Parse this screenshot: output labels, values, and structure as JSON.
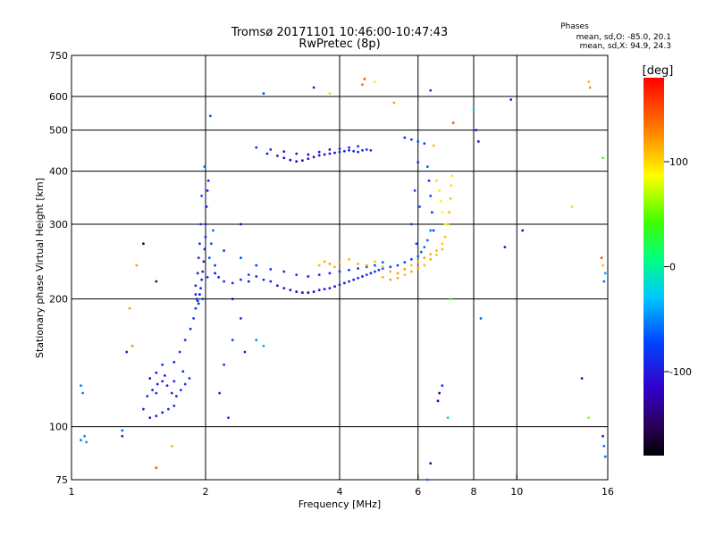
{
  "header": {
    "title": "Tromsø 20171101 10:46:00-10:47:43",
    "subtitle": "RwPretec (8p)"
  },
  "stats": {
    "title": "Phases",
    "line_o": "mean, sd,O: -85.0, 20.1",
    "line_x": "mean, sd,X: 94.9, 24.3"
  },
  "colorbar": {
    "label": "[deg]",
    "range": [
      -180,
      180
    ],
    "ticks": [
      {
        "value": 100,
        "label": "100"
      },
      {
        "value": 0,
        "label": "0"
      },
      {
        "value": -100,
        "label": "-100"
      }
    ]
  },
  "chart_data": {
    "type": "scatter",
    "xlabel": "Frequency [MHz]",
    "ylabel": "Stationary phase Virtual Height [km]",
    "x_scale": "log",
    "y_scale": "log",
    "xlim": [
      1,
      16
    ],
    "ylim": [
      75,
      750
    ],
    "x_ticks": [
      {
        "value": 1,
        "label": "1"
      },
      {
        "value": 2,
        "label": "2"
      },
      {
        "value": 4,
        "label": "4"
      },
      {
        "value": 6,
        "label": "6"
      },
      {
        "value": 8,
        "label": "8"
      },
      {
        "value": 10,
        "label": "10"
      },
      {
        "value": 16,
        "label": "16"
      }
    ],
    "y_ticks": [
      {
        "value": 75,
        "label": "75"
      },
      {
        "value": 100,
        "label": "100"
      },
      {
        "value": 200,
        "label": "200"
      },
      {
        "value": 300,
        "label": "300"
      },
      {
        "value": 400,
        "label": "400"
      },
      {
        "value": 500,
        "label": "500"
      },
      {
        "value": 600,
        "label": "600"
      },
      {
        "value": 750,
        "label": "750"
      }
    ],
    "grid": true,
    "color_variable": "phase [deg]",
    "points": [
      [
        1.05,
        125,
        -55
      ],
      [
        1.06,
        120,
        -50
      ],
      [
        1.05,
        93,
        -55
      ],
      [
        1.07,
        95,
        -50
      ],
      [
        1.08,
        92,
        -45
      ],
      [
        1.35,
        190,
        120
      ],
      [
        1.37,
        155,
        125
      ],
      [
        1.3,
        95,
        -90
      ],
      [
        1.4,
        240,
        120
      ],
      [
        1.45,
        110,
        -100
      ],
      [
        1.5,
        105,
        -110
      ],
      [
        1.55,
        106,
        -105
      ],
      [
        1.6,
        108,
        -100
      ],
      [
        1.65,
        110,
        -95
      ],
      [
        1.7,
        112,
        -90
      ],
      [
        1.48,
        118,
        -100
      ],
      [
        1.52,
        122,
        -105
      ],
      [
        1.56,
        126,
        -100
      ],
      [
        1.6,
        128,
        -95
      ],
      [
        1.64,
        125,
        -90
      ],
      [
        1.68,
        120,
        -95
      ],
      [
        1.72,
        118,
        -100
      ],
      [
        1.76,
        122,
        -90
      ],
      [
        1.8,
        126,
        -85
      ],
      [
        1.84,
        130,
        -80
      ],
      [
        1.5,
        130,
        -110
      ],
      [
        1.55,
        134,
        -105
      ],
      [
        1.62,
        132,
        -100
      ],
      [
        1.7,
        128,
        -95
      ],
      [
        1.78,
        135,
        -90
      ],
      [
        1.6,
        140,
        -90
      ],
      [
        1.7,
        142,
        -85
      ],
      [
        1.75,
        150,
        -85
      ],
      [
        1.8,
        160,
        -80
      ],
      [
        1.85,
        170,
        -80
      ],
      [
        1.88,
        180,
        -85
      ],
      [
        1.9,
        190,
        -90
      ],
      [
        1.92,
        198,
        -95
      ],
      [
        1.94,
        205,
        -100
      ],
      [
        1.95,
        212,
        -100
      ],
      [
        1.96,
        222,
        -95
      ],
      [
        1.97,
        232,
        -100
      ],
      [
        1.98,
        245,
        -100
      ],
      [
        1.99,
        262,
        -95
      ],
      [
        2.0,
        280,
        -95
      ],
      [
        2.0,
        300,
        -100
      ],
      [
        2.01,
        330,
        -105
      ],
      [
        2.02,
        360,
        -100
      ],
      [
        2.03,
        380,
        -95
      ],
      [
        1.99,
        410,
        -60
      ],
      [
        1.96,
        350,
        -70
      ],
      [
        1.95,
        300,
        -80
      ],
      [
        1.94,
        270,
        -85
      ],
      [
        1.93,
        250,
        -90
      ],
      [
        1.92,
        230,
        -95
      ],
      [
        1.9,
        215,
        -90
      ],
      [
        1.9,
        205,
        -85
      ],
      [
        1.91,
        200,
        -80
      ],
      [
        1.93,
        195,
        -85
      ],
      [
        1.97,
        200,
        -75
      ],
      [
        2.02,
        225,
        -70
      ],
      [
        2.04,
        250,
        -65
      ],
      [
        2.06,
        270,
        -70
      ],
      [
        2.08,
        290,
        -60
      ],
      [
        2.1,
        240,
        -80
      ],
      [
        2.1,
        230,
        -100
      ],
      [
        2.14,
        225,
        -95
      ],
      [
        2.2,
        220,
        -90
      ],
      [
        2.3,
        218,
        -85
      ],
      [
        2.4,
        222,
        -80
      ],
      [
        2.5,
        228,
        -75
      ],
      [
        2.6,
        226,
        -85
      ],
      [
        2.7,
        222,
        -90
      ],
      [
        2.8,
        220,
        -95
      ],
      [
        2.9,
        215,
        -100
      ],
      [
        3.0,
        212,
        -110
      ],
      [
        3.1,
        210,
        -115
      ],
      [
        3.2,
        208,
        -120
      ],
      [
        3.3,
        207,
        -120
      ],
      [
        3.4,
        207,
        -125
      ],
      [
        3.5,
        208,
        -120
      ],
      [
        3.6,
        210,
        -115
      ],
      [
        3.7,
        211,
        -110
      ],
      [
        3.8,
        212,
        -110
      ],
      [
        3.9,
        214,
        -105
      ],
      [
        4.0,
        216,
        -100
      ],
      [
        4.1,
        218,
        -100
      ],
      [
        4.2,
        220,
        -95
      ],
      [
        4.3,
        222,
        -95
      ],
      [
        4.4,
        224,
        -90
      ],
      [
        4.5,
        226,
        -90
      ],
      [
        4.6,
        228,
        -85
      ],
      [
        4.7,
        230,
        -85
      ],
      [
        4.8,
        232,
        -80
      ],
      [
        4.9,
        234,
        -80
      ],
      [
        5.0,
        236,
        -80
      ],
      [
        5.2,
        238,
        -75
      ],
      [
        5.4,
        240,
        -75
      ],
      [
        5.6,
        244,
        -70
      ],
      [
        5.8,
        248,
        -70
      ],
      [
        6.0,
        252,
        -65
      ],
      [
        6.1,
        258,
        -65
      ],
      [
        6.2,
        265,
        -60
      ],
      [
        6.3,
        275,
        -60
      ],
      [
        6.4,
        290,
        -55
      ],
      [
        2.2,
        260,
        -80
      ],
      [
        2.4,
        250,
        -70
      ],
      [
        2.6,
        240,
        -80
      ],
      [
        2.8,
        235,
        -90
      ],
      [
        3.0,
        232,
        -85
      ],
      [
        3.2,
        228,
        -90
      ],
      [
        3.4,
        226,
        -95
      ],
      [
        3.6,
        228,
        -90
      ],
      [
        3.8,
        230,
        -85
      ],
      [
        4.0,
        232,
        -80
      ],
      [
        4.2,
        234,
        -80
      ],
      [
        4.4,
        236,
        -75
      ],
      [
        4.6,
        238,
        -70
      ],
      [
        4.8,
        240,
        -70
      ],
      [
        5.0,
        244,
        -65
      ],
      [
        3.6,
        240,
        110
      ],
      [
        3.7,
        245,
        115
      ],
      [
        3.8,
        242,
        120
      ],
      [
        3.9,
        238,
        110
      ],
      [
        4.0,
        244,
        125
      ],
      [
        4.2,
        248,
        110
      ],
      [
        4.4,
        242,
        115
      ],
      [
        4.6,
        240,
        120
      ],
      [
        4.8,
        245,
        105
      ],
      [
        5.0,
        238,
        110
      ],
      [
        5.2,
        232,
        115
      ],
      [
        5.4,
        230,
        120
      ],
      [
        5.6,
        235,
        125
      ],
      [
        5.8,
        240,
        110
      ],
      [
        6.0,
        245,
        115
      ],
      [
        6.2,
        250,
        120
      ],
      [
        6.4,
        255,
        115
      ],
      [
        6.6,
        260,
        110
      ],
      [
        6.8,
        270,
        105
      ],
      [
        6.9,
        280,
        110
      ],
      [
        7.0,
        300,
        100
      ],
      [
        7.05,
        320,
        110
      ],
      [
        7.1,
        345,
        105
      ],
      [
        7.12,
        370,
        100
      ],
      [
        7.15,
        390,
        95
      ],
      [
        5.0,
        225,
        115
      ],
      [
        5.2,
        222,
        120
      ],
      [
        5.4,
        224,
        115
      ],
      [
        5.6,
        228,
        110
      ],
      [
        5.8,
        232,
        115
      ],
      [
        6.0,
        236,
        120
      ],
      [
        6.2,
        240,
        110
      ],
      [
        6.4,
        248,
        115
      ],
      [
        6.6,
        254,
        105
      ],
      [
        6.8,
        262,
        110
      ],
      [
        6.6,
        380,
        100
      ],
      [
        6.7,
        360,
        95
      ],
      [
        6.75,
        340,
        90
      ],
      [
        6.8,
        320,
        85
      ],
      [
        6.9,
        300,
        80
      ],
      [
        6.5,
        290,
        -80
      ],
      [
        6.45,
        320,
        -75
      ],
      [
        6.4,
        350,
        -70
      ],
      [
        6.35,
        380,
        -80
      ],
      [
        6.3,
        410,
        -60
      ],
      [
        6.0,
        420,
        -90
      ],
      [
        5.9,
        360,
        -85
      ],
      [
        5.8,
        300,
        -80
      ],
      [
        5.95,
        270,
        -75
      ],
      [
        6.05,
        330,
        -70
      ],
      [
        2.75,
        440,
        -100
      ],
      [
        2.9,
        435,
        -110
      ],
      [
        3.0,
        430,
        -115
      ],
      [
        3.1,
        425,
        -120
      ],
      [
        3.2,
        422,
        -125
      ],
      [
        3.3,
        424,
        -120
      ],
      [
        3.4,
        428,
        -115
      ],
      [
        3.5,
        432,
        -110
      ],
      [
        3.6,
        436,
        -110
      ],
      [
        3.7,
        438,
        -105
      ],
      [
        3.8,
        440,
        -105
      ],
      [
        3.9,
        442,
        -100
      ],
      [
        4.0,
        444,
        -100
      ],
      [
        4.1,
        446,
        -95
      ],
      [
        4.2,
        448,
        -95
      ],
      [
        4.3,
        446,
        -90
      ],
      [
        4.4,
        444,
        -90
      ],
      [
        4.5,
        448,
        -85
      ],
      [
        4.6,
        450,
        -85
      ],
      [
        4.7,
        448,
        -80
      ],
      [
        2.6,
        455,
        -90
      ],
      [
        2.8,
        450,
        -95
      ],
      [
        3.0,
        445,
        -100
      ],
      [
        3.2,
        440,
        -105
      ],
      [
        3.4,
        438,
        -110
      ],
      [
        3.6,
        444,
        -105
      ],
      [
        3.8,
        450,
        -100
      ],
      [
        4.0,
        452,
        -95
      ],
      [
        4.2,
        455,
        -90
      ],
      [
        4.4,
        458,
        -85
      ],
      [
        5.6,
        480,
        -90
      ],
      [
        5.8,
        475,
        -80
      ],
      [
        6.0,
        470,
        -75
      ],
      [
        6.2,
        465,
        -70
      ],
      [
        6.5,
        460,
        110
      ],
      [
        4.5,
        640,
        140
      ],
      [
        4.55,
        660,
        150
      ],
      [
        4.8,
        650,
        80
      ],
      [
        3.5,
        630,
        -100
      ],
      [
        3.8,
        610,
        100
      ],
      [
        2.7,
        610,
        -70
      ],
      [
        6.4,
        620,
        -80
      ],
      [
        7.2,
        520,
        150
      ],
      [
        8.0,
        560,
        -30
      ],
      [
        8.1,
        500,
        -110
      ],
      [
        9.7,
        590,
        -100
      ],
      [
        8.2,
        470,
        -110
      ],
      [
        14.5,
        650,
        110
      ],
      [
        14.6,
        630,
        120
      ],
      [
        15.6,
        430,
        40
      ],
      [
        15.5,
        250,
        150
      ],
      [
        15.6,
        240,
        110
      ],
      [
        15.8,
        230,
        -40
      ],
      [
        15.7,
        220,
        -60
      ],
      [
        13.3,
        330,
        100
      ],
      [
        10.3,
        290,
        -130
      ],
      [
        9.4,
        265,
        -100
      ],
      [
        8.3,
        180,
        -60
      ],
      [
        14.0,
        130,
        -110
      ],
      [
        14.5,
        105,
        60
      ],
      [
        15.6,
        95,
        -100
      ],
      [
        15.7,
        90,
        -60
      ],
      [
        15.8,
        85,
        -55
      ],
      [
        7.0,
        105,
        -20
      ],
      [
        7.1,
        200,
        40
      ],
      [
        6.7,
        120,
        -140
      ],
      [
        6.65,
        115,
        -120
      ],
      [
        6.8,
        125,
        -80
      ],
      [
        6.4,
        82,
        -130
      ],
      [
        6.3,
        75,
        -60
      ],
      [
        2.7,
        155,
        -40
      ],
      [
        2.6,
        160,
        -50
      ],
      [
        2.3,
        160,
        -70
      ],
      [
        2.4,
        180,
        -85
      ],
      [
        2.45,
        150,
        -90
      ],
      [
        1.55,
        80,
        150
      ],
      [
        1.68,
        90,
        110
      ],
      [
        1.55,
        120,
        -80
      ],
      [
        1.45,
        270,
        -160
      ],
      [
        1.55,
        220,
        -150
      ],
      [
        1.3,
        98,
        -60
      ],
      [
        1.33,
        150,
        -100
      ],
      [
        2.2,
        140,
        -85
      ],
      [
        2.15,
        120,
        -90
      ],
      [
        2.25,
        105,
        -80
      ],
      [
        2.3,
        200,
        -120
      ],
      [
        2.4,
        300,
        -120
      ],
      [
        2.5,
        220,
        -110
      ],
      [
        2.05,
        540,
        -70
      ],
      [
        5.3,
        580,
        120
      ]
    ]
  }
}
